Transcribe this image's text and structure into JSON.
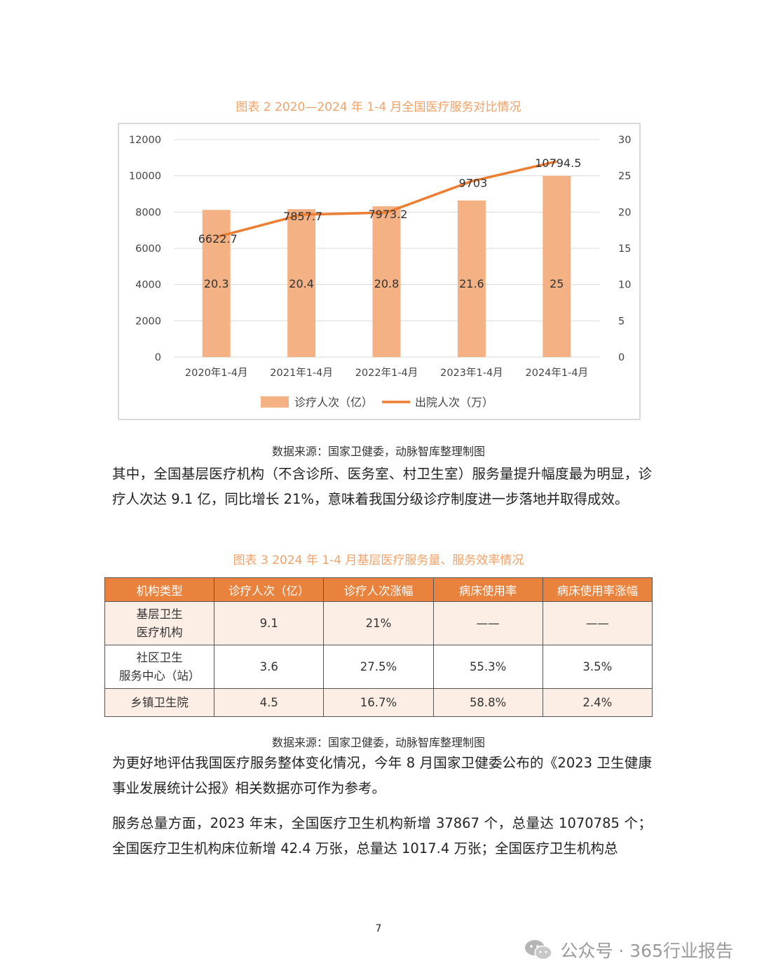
{
  "figure2": {
    "caption": "图表 2 2020—2024 年 1-4 月全国医疗服务对比情况",
    "source": "数据来源：国家卫健委，动脉智库整理制图"
  },
  "chart_data": {
    "type": "bar",
    "categories": [
      "2020年1-4月",
      "2021年1-4月",
      "2022年1-4月",
      "2023年1-4月",
      "2024年1-4月"
    ],
    "series": [
      {
        "name": "诊疗人次（亿）",
        "type": "bar",
        "axis": "right",
        "values": [
          20.3,
          20.4,
          20.8,
          21.6,
          25
        ],
        "labels": [
          "20.3",
          "20.4",
          "20.8",
          "21.6",
          "25"
        ],
        "color": "#F4B183"
      },
      {
        "name": "出院人次（万）",
        "type": "line",
        "axis": "left",
        "values": [
          6622.7,
          7857.7,
          7973.2,
          9703,
          10794.5
        ],
        "labels": [
          "6622.7",
          "7857.7",
          "7973.2",
          "9703",
          "10794.5"
        ],
        "color": "#ED7D31"
      }
    ],
    "y_left": {
      "min": 0,
      "max": 12000,
      "ticks": [
        "0",
        "2000",
        "4000",
        "6000",
        "8000",
        "10000",
        "12000"
      ]
    },
    "y_right": {
      "min": 0,
      "max": 30,
      "ticks": [
        "0",
        "5",
        "10",
        "15",
        "20",
        "25",
        "30"
      ]
    },
    "grid": true,
    "legend_position": "bottom"
  },
  "paragraph1": "其中，全国基层医疗机构（不含诊所、医务室、村卫生室）服务量提升幅度最为明显，诊疗人次达 9.1 亿，同比增长 21%，意味着我国分级诊疗制度进一步落地并取得成效。",
  "table3": {
    "caption": "图表 3 2024 年 1-4 月基层医疗服务量、服务效率情况",
    "headers": [
      "机构类型",
      "诊疗人次（亿）",
      "诊疗人次涨幅",
      "病床使用率",
      "病床使用率涨幅"
    ],
    "rows": [
      {
        "type_l1": "基层卫生",
        "type_l2": "医疗机构",
        "visits": "9.1",
        "visits_growth": "21%",
        "bed_rate": "——",
        "bed_rate_growth": "——"
      },
      {
        "type_l1": "社区卫生",
        "type_l2": "服务中心（站）",
        "visits": "3.6",
        "visits_growth": "27.5%",
        "bed_rate": "55.3%",
        "bed_rate_growth": "3.5%"
      },
      {
        "type_l1": "乡镇卫生院",
        "type_l2": "",
        "visits": "4.5",
        "visits_growth": "16.7%",
        "bed_rate": "58.8%",
        "bed_rate_growth": "2.4%"
      }
    ],
    "source": "数据来源：国家卫健委，动脉智库整理制图"
  },
  "paragraph2": "为更好地评估我国医疗服务整体变化情况，今年 8 月国家卫健委公布的《2023 卫生健康事业发展统计公报》相关数据亦可作为参考。",
  "paragraph3": "服务总量方面，2023 年末，全国医疗卫生机构新增 37867 个，总量达 1070785 个；全国医疗卫生机构床位新增 42.4 万张，总量达 1017.4 万张；全国医疗卫生机构总",
  "page_number": "7",
  "watermark": {
    "text": "公众号 · 365行业报告",
    "icon": "wechat-icon"
  }
}
